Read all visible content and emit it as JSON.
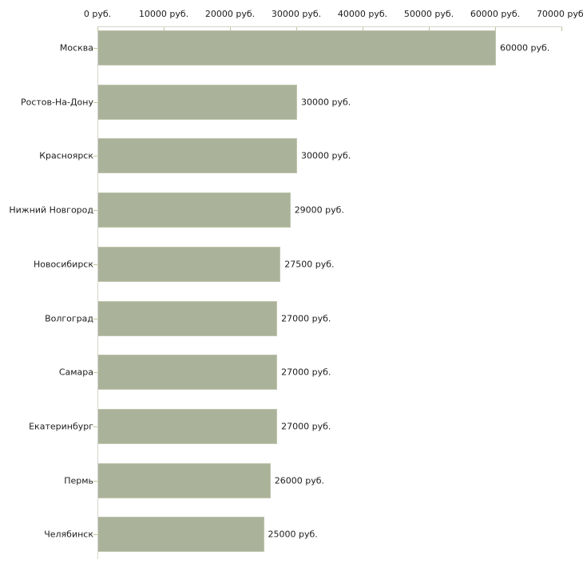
{
  "chart_data": {
    "type": "bar",
    "orientation": "horizontal",
    "title": "",
    "xlabel": "",
    "ylabel": "",
    "xlim": [
      0,
      70000
    ],
    "grid": false,
    "legend": null,
    "unit": "руб.",
    "categories": [
      "Москва",
      "Ростов-На-Дону",
      "Красноярск",
      "Нижний Новгород",
      "Новосибирск",
      "Волгоград",
      "Самара",
      "Екатеринбург",
      "Пермь",
      "Челябинск"
    ],
    "values": [
      60000,
      30000,
      30000,
      29000,
      27500,
      27000,
      27000,
      27000,
      26000,
      25000
    ],
    "value_labels": [
      "60000 руб.",
      "30000 руб.",
      "30000 руб.",
      "29000 руб.",
      "27500 руб.",
      "27000 руб.",
      "27000 руб.",
      "27000 руб.",
      "26000 руб.",
      "25000 руб."
    ],
    "axis_ticks": [
      {
        "value": 0,
        "label": "0 руб."
      },
      {
        "value": 10000,
        "label": "10000 руб."
      },
      {
        "value": 20000,
        "label": "20000 руб."
      },
      {
        "value": 30000,
        "label": "30000 руб."
      },
      {
        "value": 40000,
        "label": "40000 руб."
      },
      {
        "value": 50000,
        "label": "50000 руб."
      },
      {
        "value": 60000,
        "label": "60000 руб."
      },
      {
        "value": 70000,
        "label": "70000 руб."
      }
    ],
    "colors": {
      "bar_fill": "#abb29a",
      "bar_border": "#c0c6ae",
      "axis_line": "#d4d4cc",
      "tick_mark": "#c2c49c",
      "text": "#1c1c1c",
      "background": "#ffffff"
    }
  }
}
